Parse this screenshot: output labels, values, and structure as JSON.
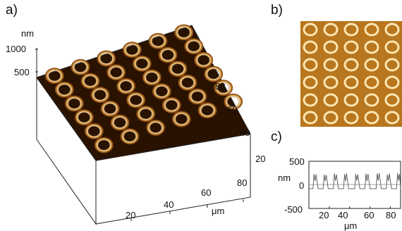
{
  "panels": {
    "a": {
      "label": "a)",
      "z_unit": "nm",
      "z_ticks": [
        "1000",
        "500"
      ],
      "x_ticks": [
        "20",
        "40",
        "60",
        "80"
      ],
      "y_ticks": [
        "20",
        "40",
        "60",
        "80"
      ],
      "x_unit": "μm"
    },
    "b": {
      "label": "b)"
    },
    "c": {
      "label": "c)",
      "y_unit": "nm",
      "y_ticks": [
        "500",
        "0",
        "-500"
      ],
      "x_ticks": [
        "20",
        "40",
        "60",
        "80"
      ],
      "x_unit": "μm"
    }
  },
  "chart_data": {
    "type": "line",
    "ylabel": "nm",
    "xlabel": "μm",
    "xlim": [
      0,
      90
    ],
    "ylim": [
      -500,
      500
    ],
    "x": [
      0,
      4,
      5,
      6,
      7,
      9,
      14,
      15,
      16,
      17,
      19,
      24,
      25,
      26,
      27,
      29,
      34,
      35,
      36,
      37,
      39,
      45,
      46,
      47,
      48,
      50,
      55,
      56,
      57,
      58,
      60,
      66,
      67,
      68,
      69,
      71,
      76,
      77,
      78,
      79,
      81,
      86,
      87,
      88,
      89,
      90
    ],
    "y": [
      -80,
      -80,
      230,
      80,
      220,
      -80,
      -80,
      220,
      80,
      210,
      -80,
      -80,
      240,
      90,
      220,
      -80,
      -80,
      230,
      80,
      240,
      -80,
      -80,
      230,
      90,
      220,
      -80,
      -80,
      240,
      80,
      230,
      -80,
      -80,
      240,
      90,
      250,
      -80,
      -80,
      220,
      80,
      240,
      -80,
      -80,
      250,
      90,
      230,
      -80
    ]
  }
}
